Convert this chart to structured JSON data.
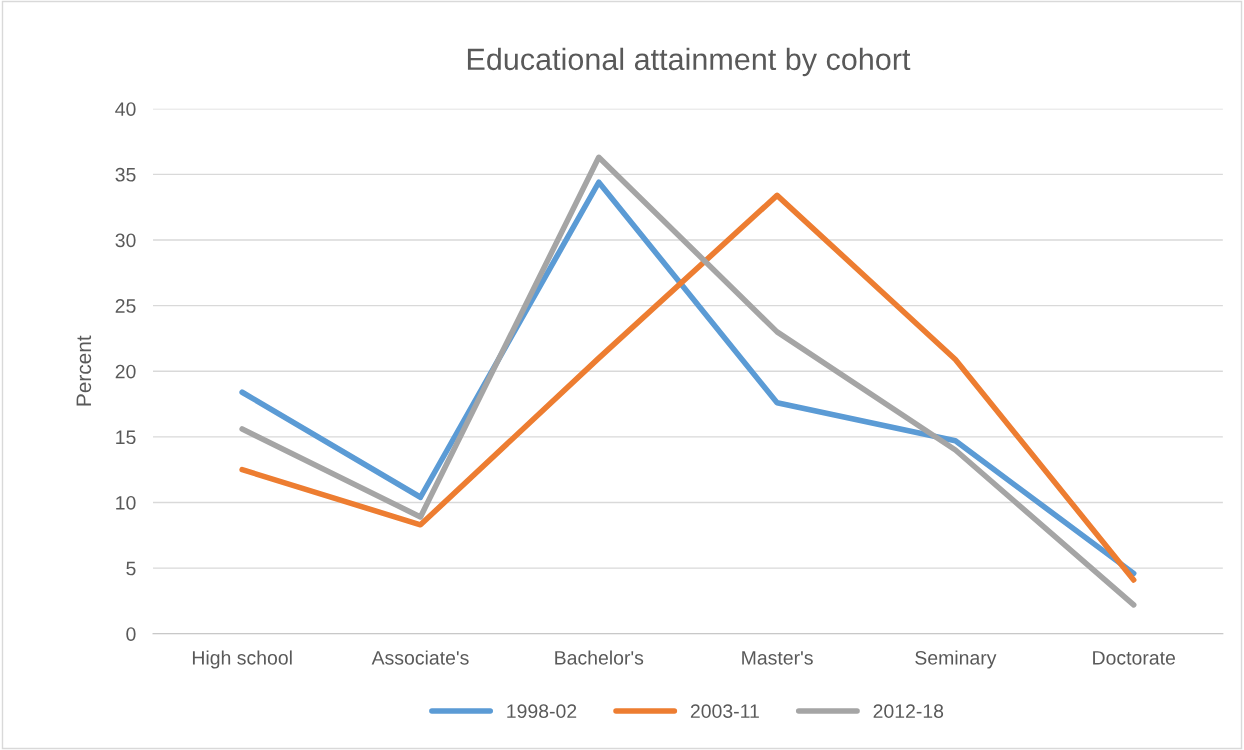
{
  "chart_data": {
    "type": "line",
    "title": "Educational attainment by cohort",
    "ylabel": "Percent",
    "categories": [
      "High school",
      "Associate's",
      "Bachelor's",
      "Master's",
      "Seminary",
      "Doctorate"
    ],
    "series": [
      {
        "name": "1998-02",
        "color": "#5b9bd5",
        "values": [
          18.4,
          10.4,
          34.4,
          17.6,
          14.7,
          4.6
        ]
      },
      {
        "name": "2003-11",
        "color": "#ed7d31",
        "values": [
          12.5,
          8.3,
          21.0,
          33.4,
          20.9,
          4.1
        ]
      },
      {
        "name": "2012-18",
        "color": "#a5a5a5",
        "values": [
          15.6,
          8.9,
          36.3,
          23.0,
          14.0,
          2.2
        ]
      }
    ],
    "ylim": [
      0,
      40
    ],
    "yticks": [
      0,
      5,
      10,
      15,
      20,
      25,
      30,
      35,
      40
    ],
    "grid": "y",
    "legend": "bottom",
    "marker": "none",
    "line_style": "solid"
  }
}
